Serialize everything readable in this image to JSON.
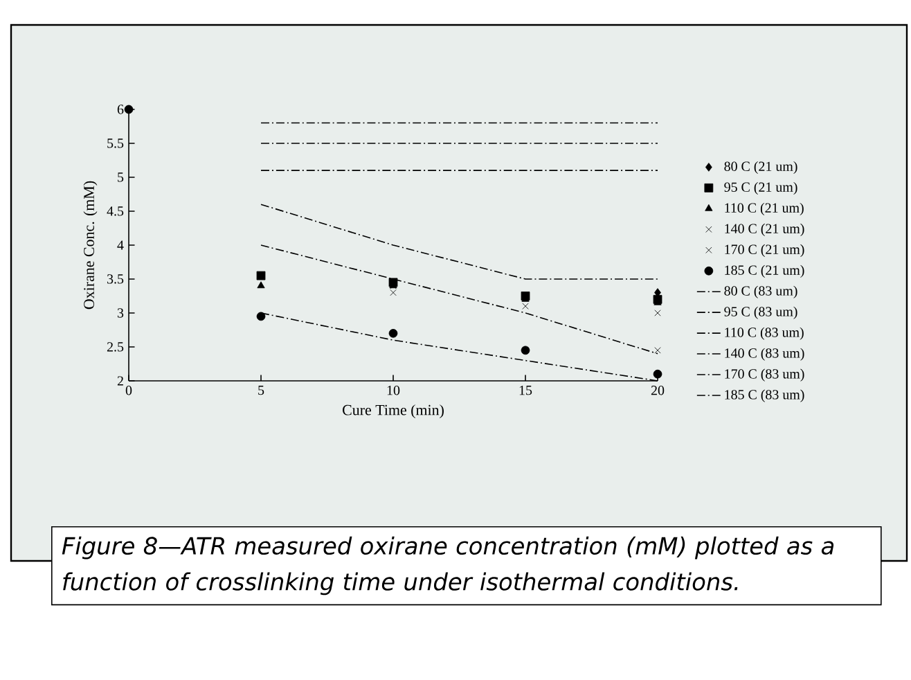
{
  "chart_data": {
    "type": "line",
    "xlabel": "Cure Time (min)",
    "ylabel": "Oxirane Conc. (mM)",
    "x": [
      0,
      5,
      10,
      15,
      20
    ],
    "xlim": [
      0,
      20
    ],
    "xticks": [
      0,
      5,
      10,
      15,
      20
    ],
    "ylim": [
      2,
      6
    ],
    "yticks": [
      2,
      2.5,
      3,
      3.5,
      4,
      4.5,
      5,
      5.5,
      6
    ],
    "legend": "right",
    "series": [
      {
        "name": "80 C (21 um)",
        "type": "scatter",
        "marker": "diamond",
        "color": "#000000",
        "values": [
          null,
          null,
          null,
          null,
          3.3
        ]
      },
      {
        "name": "95 C (21 um)",
        "type": "scatter",
        "marker": "square",
        "color": "#000000",
        "values": [
          null,
          3.55,
          3.45,
          3.25,
          3.2
        ]
      },
      {
        "name": "110 C (21 um)",
        "type": "scatter",
        "marker": "triangle",
        "color": "#000000",
        "values": [
          null,
          3.4,
          3.4,
          3.2,
          3.15
        ]
      },
      {
        "name": "140 C (21 um)",
        "type": "scatter",
        "marker": "cross",
        "color": "#000000",
        "values": [
          null,
          null,
          3.3,
          3.1,
          3.0
        ]
      },
      {
        "name": "170 C (21 um)",
        "type": "scatter",
        "marker": "cross",
        "color": "#000000",
        "values": [
          null,
          null,
          3.4,
          2.45,
          2.45
        ]
      },
      {
        "name": "185 C (21 um)",
        "type": "scatter",
        "marker": "circle",
        "color": "#000000",
        "values": [
          6,
          2.95,
          2.7,
          2.45,
          2.1
        ]
      },
      {
        "name": "80 C (83 um)",
        "line_style": "dashed",
        "color": "#000000",
        "values": [
          null,
          5.8,
          5.8,
          5.8,
          5.8
        ]
      },
      {
        "name": "95 C (83 um)",
        "line_style": "dashed",
        "color": "#000000",
        "values": [
          null,
          5.5,
          5.5,
          5.5,
          5.5
        ]
      },
      {
        "name": "110 C (83 um)",
        "line_style": "dashed",
        "color": "#000000",
        "values": [
          null,
          5.1,
          5.1,
          5.1,
          5.1
        ]
      },
      {
        "name": "140 C (83 um)",
        "line_style": "dashed",
        "color": "#000000",
        "values": [
          null,
          4.6,
          4.0,
          3.5,
          3.5
        ]
      },
      {
        "name": "170 C (83 um)",
        "line_style": "dashed",
        "color": "#000000",
        "values": [
          null,
          4.0,
          3.5,
          3.0,
          2.4
        ]
      },
      {
        "name": "185 C (83 um)",
        "line_style": "dashed",
        "color": "#000000",
        "values": [
          null,
          3.0,
          2.6,
          2.3,
          2.0
        ]
      }
    ],
    "annotations": [
      "Figure 8—ATR measured oxirane concentration (mM) plotted as a function of crosslinking time under isothermal conditions."
    ]
  }
}
